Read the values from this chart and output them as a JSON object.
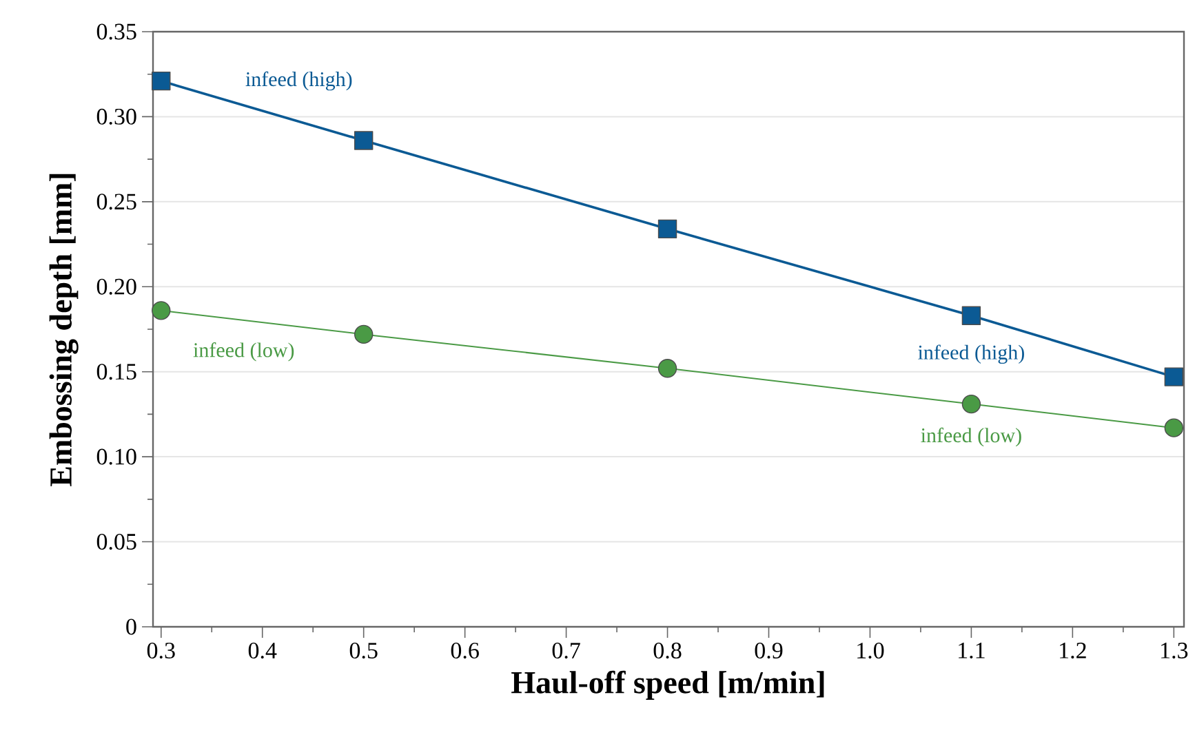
{
  "chart_data": {
    "type": "line",
    "xlabel": "Haul-off speed [m/min]",
    "ylabel": "Embossing depth [mm]",
    "series": [
      {
        "name": "infeed (high)",
        "color": "#0b5a94",
        "marker": "square",
        "x": [
          0.3,
          0.5,
          0.8,
          1.1,
          1.3
        ],
        "values": [
          0.321,
          0.286,
          0.234,
          0.183,
          0.147
        ]
      },
      {
        "name": "infeed (low)",
        "color": "#4a9a45",
        "marker": "circle",
        "x": [
          0.3,
          0.5,
          0.8,
          1.1,
          1.3
        ],
        "values": [
          0.186,
          0.172,
          0.152,
          0.131,
          0.117
        ]
      }
    ],
    "annotations": [
      {
        "text": "infeed (high)",
        "x": 1.1,
        "y": 0.183
      },
      {
        "text": "infeed (low)",
        "x": 1.1,
        "y": 0.131
      }
    ],
    "xlim": [
      0.292,
      1.31
    ],
    "xticks": [
      0.3,
      0.4,
      0.5,
      0.6,
      0.7,
      0.8,
      0.9,
      {
        "value": 1.0,
        "label": "1.0"
      },
      1.1,
      1.2,
      1.3
    ],
    "ylim": [
      0,
      0.35
    ],
    "yticks": [
      0,
      0.05,
      {
        "value": 0.1,
        "label": "0.10"
      },
      0.15,
      {
        "value": 0.2,
        "label": "0.20"
      },
      0.25,
      {
        "value": 0.3,
        "label": "0.30"
      },
      0.35
    ],
    "grid": "y",
    "legend": false,
    "line_style": "solid"
  }
}
